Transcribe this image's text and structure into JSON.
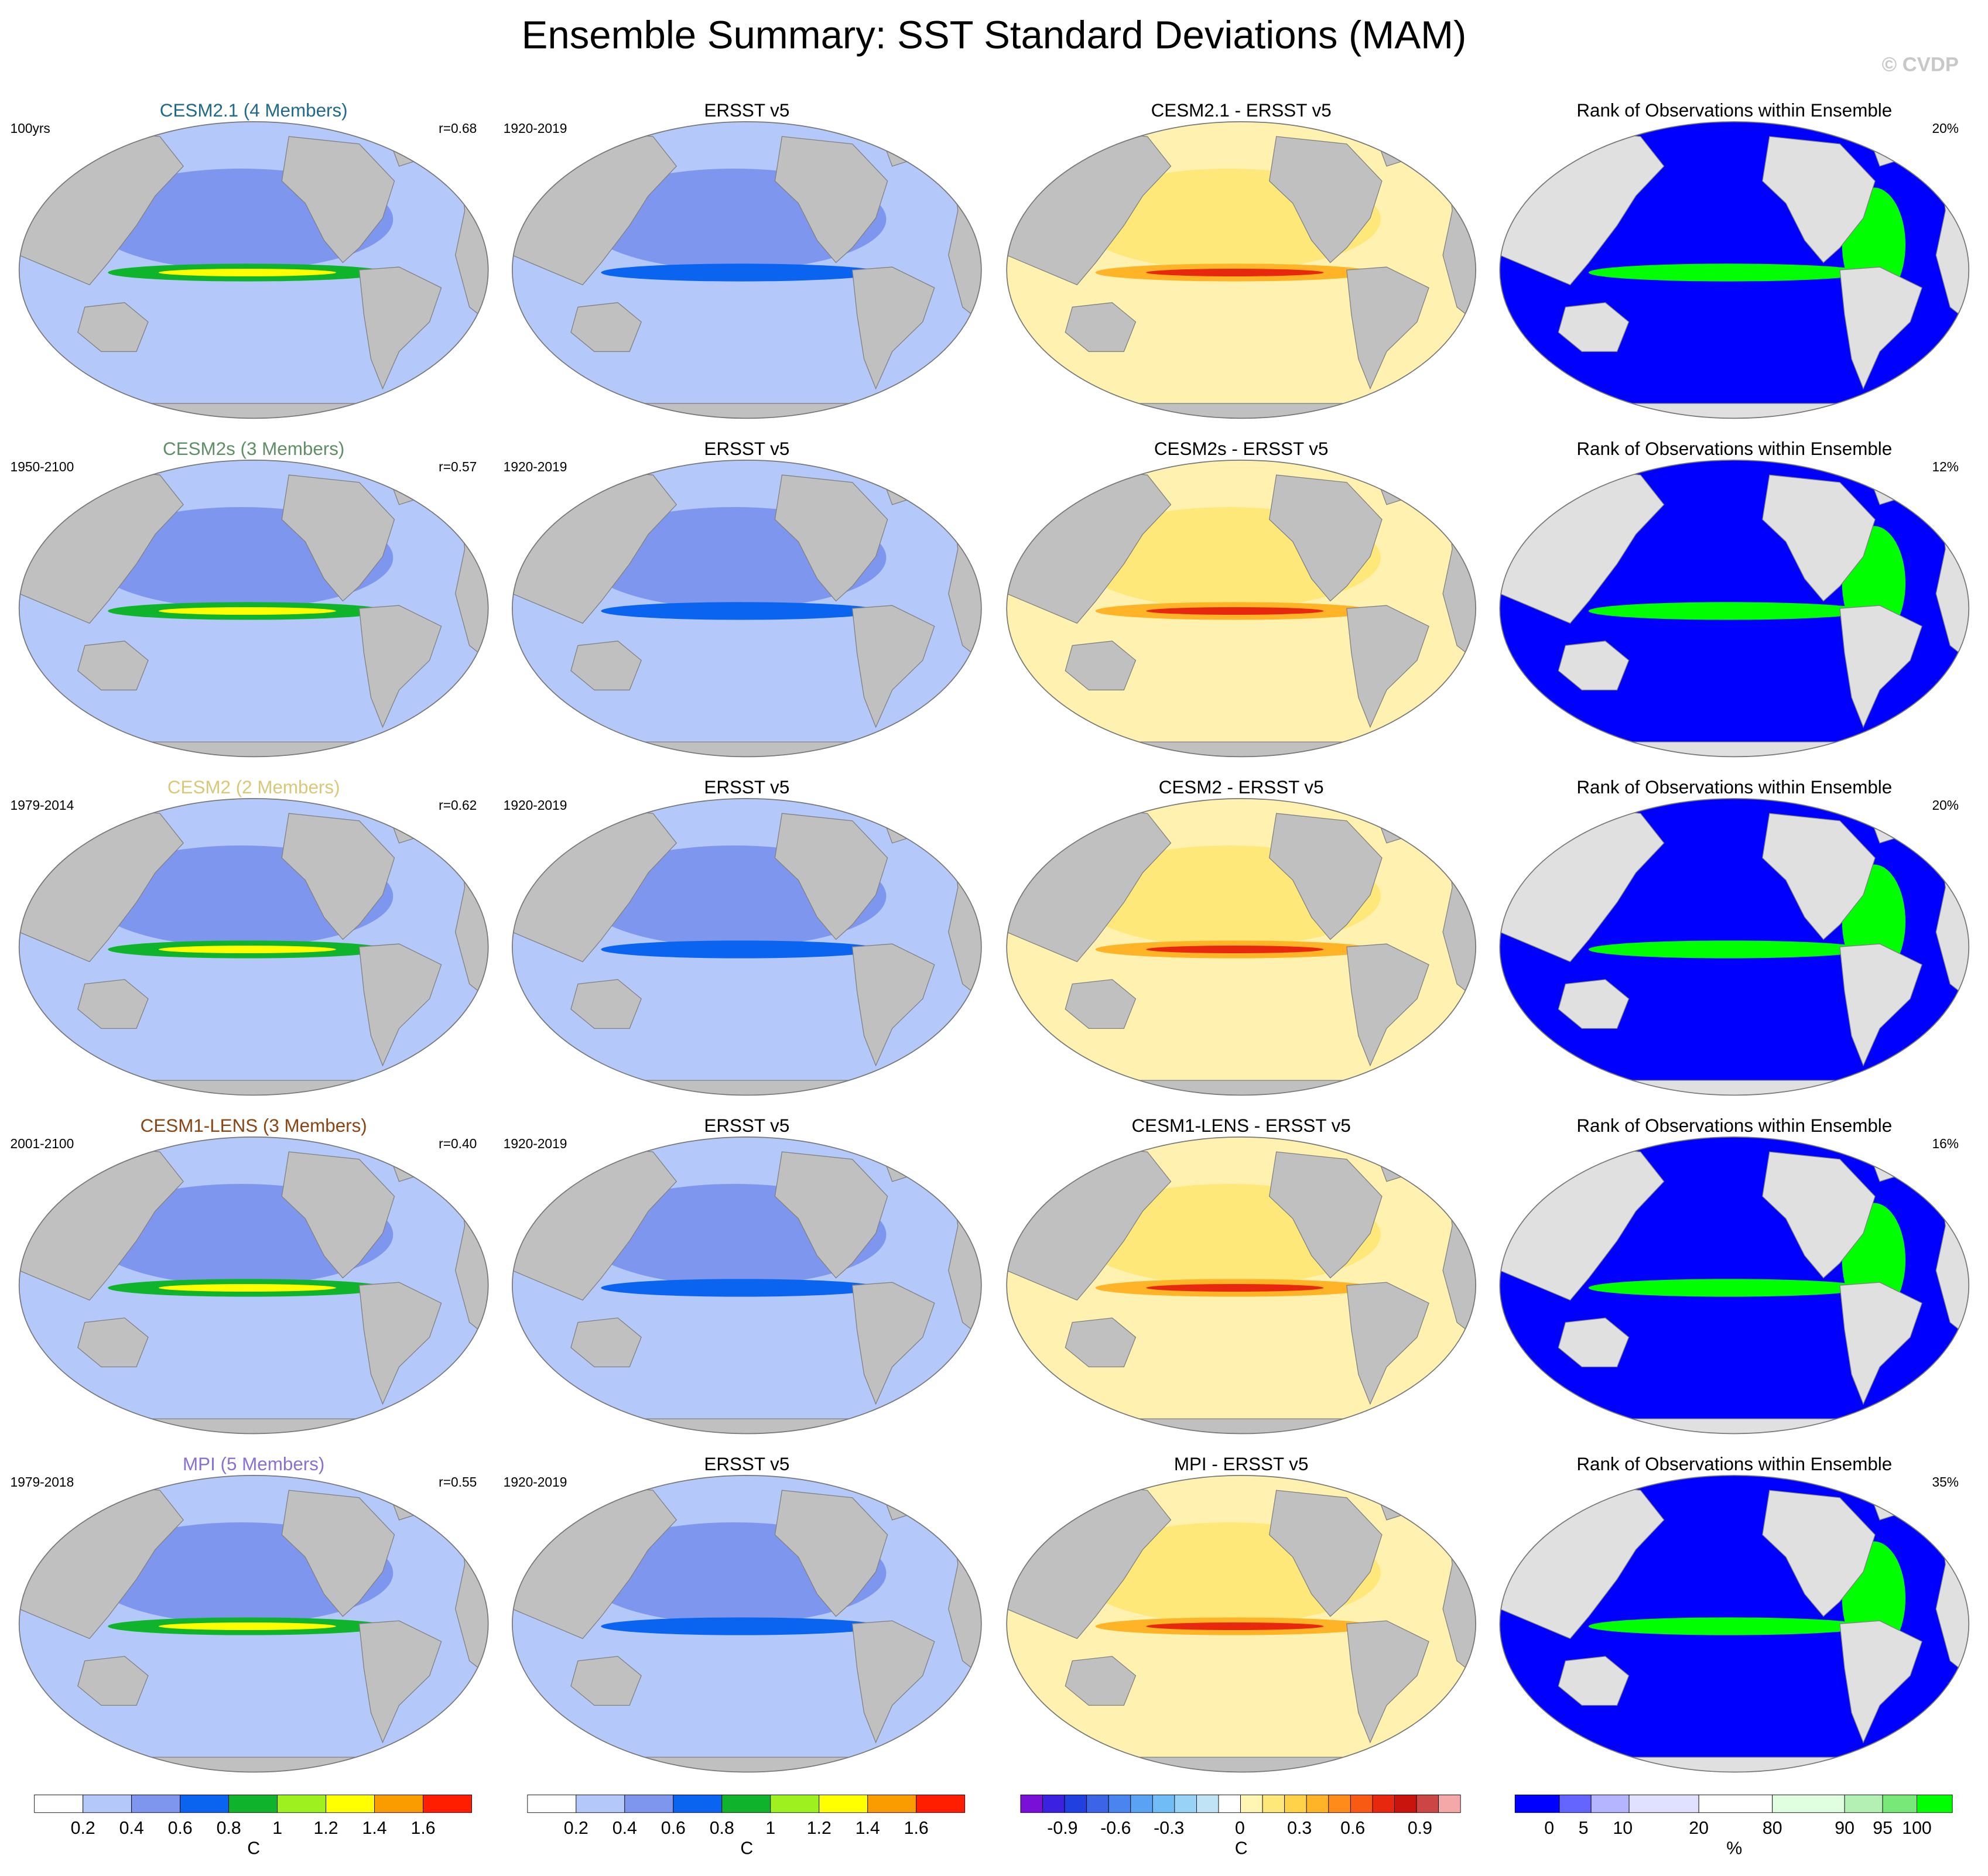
{
  "title": "Ensemble Summary: SST Standard Deviations (MAM)",
  "watermark": "© CVDP",
  "rows": [
    {
      "model": {
        "title": "CESM2.1 (4 Members)",
        "color": "#1f6a8c",
        "period": "100yrs",
        "r": "r=0.68"
      },
      "obs": {
        "title": "ERSST v5",
        "period": "1920-2019"
      },
      "diff": {
        "title": "CESM2.1 - ERSST v5"
      },
      "rank": {
        "title": "Rank of Observations within Ensemble",
        "percent": "20%"
      }
    },
    {
      "model": {
        "title": "CESM2s (3 Members)",
        "color": "#5f8f66",
        "period": "1950-2100",
        "r": "r=0.57"
      },
      "obs": {
        "title": "ERSST v5",
        "period": "1920-2019"
      },
      "diff": {
        "title": "CESM2s - ERSST v5"
      },
      "rank": {
        "title": "Rank of Observations within Ensemble",
        "percent": "12%"
      }
    },
    {
      "model": {
        "title": "CESM2 (2 Members)",
        "color": "#d8c878",
        "period": "1979-2014",
        "r": "r=0.62"
      },
      "obs": {
        "title": "ERSST v5",
        "period": "1920-2019"
      },
      "diff": {
        "title": "CESM2 - ERSST v5"
      },
      "rank": {
        "title": "Rank of Observations within Ensemble",
        "percent": "20%"
      }
    },
    {
      "model": {
        "title": "CESM1-LENS (3 Members)",
        "color": "#8b4513",
        "period": "2001-2100",
        "r": "r=0.40"
      },
      "obs": {
        "title": "ERSST v5",
        "period": "1920-2019"
      },
      "diff": {
        "title": "CESM1-LENS - ERSST v5"
      },
      "rank": {
        "title": "Rank of Observations within Ensemble",
        "percent": "16%"
      }
    },
    {
      "model": {
        "title": "MPI (5 Members)",
        "color": "#8a6fd6",
        "period": "1979-2018",
        "r": "r=0.55"
      },
      "obs": {
        "title": "ERSST v5",
        "period": "1920-2019"
      },
      "diff": {
        "title": "MPI - ERSST v5"
      },
      "rank": {
        "title": "Rank of Observations within Ensemble",
        "percent": "35%"
      }
    }
  ],
  "colorbars": [
    {
      "colors": [
        "#ffffff",
        "#b4c8fa",
        "#7f96ef",
        "#0a64f0",
        "#10b42c",
        "#9ef01e",
        "#ffff00",
        "#fa9b00",
        "#ff1e00"
      ],
      "labels": [
        "0.2",
        "0.4",
        "0.6",
        "0.8",
        "1",
        "1.2",
        "1.4",
        "1.6"
      ],
      "unit": "C"
    },
    {
      "colors": [
        "#ffffff",
        "#b4c8fa",
        "#7f96ef",
        "#0a64f0",
        "#10b42c",
        "#9ef01e",
        "#ffff00",
        "#fa9b00",
        "#ff1e00"
      ],
      "labels": [
        "0.2",
        "0.4",
        "0.6",
        "0.8",
        "1",
        "1.2",
        "1.4",
        "1.6"
      ],
      "unit": "C"
    },
    {
      "colors": [
        "#7a10d8",
        "#3a22e0",
        "#2040e0",
        "#3c64e6",
        "#4a84ee",
        "#5aa2f4",
        "#70bcf6",
        "#98d2f6",
        "#c0e4f6",
        "#ffffff",
        "#fff6b4",
        "#ffe87a",
        "#ffd24a",
        "#ffb428",
        "#ff8c1a",
        "#f85a14",
        "#e8280e",
        "#c8140a",
        "#cc4646",
        "#f4a8a8"
      ],
      "labels": [
        "-0.9",
        "-0.6",
        "-0.3",
        "0",
        "0.3",
        "0.6",
        "0.9"
      ],
      "unit": "C"
    },
    {
      "colors": [
        "#0000ff",
        "#6464ff",
        "#b4b4ff",
        "#e0e0ff",
        "#ffffff",
        "#e0ffe0",
        "#b4f0b4",
        "#78e878",
        "#00ff00"
      ],
      "labels": [
        "0",
        "5",
        "10",
        "20",
        "80",
        "90",
        "95",
        "100"
      ],
      "unit": "%"
    }
  ]
}
